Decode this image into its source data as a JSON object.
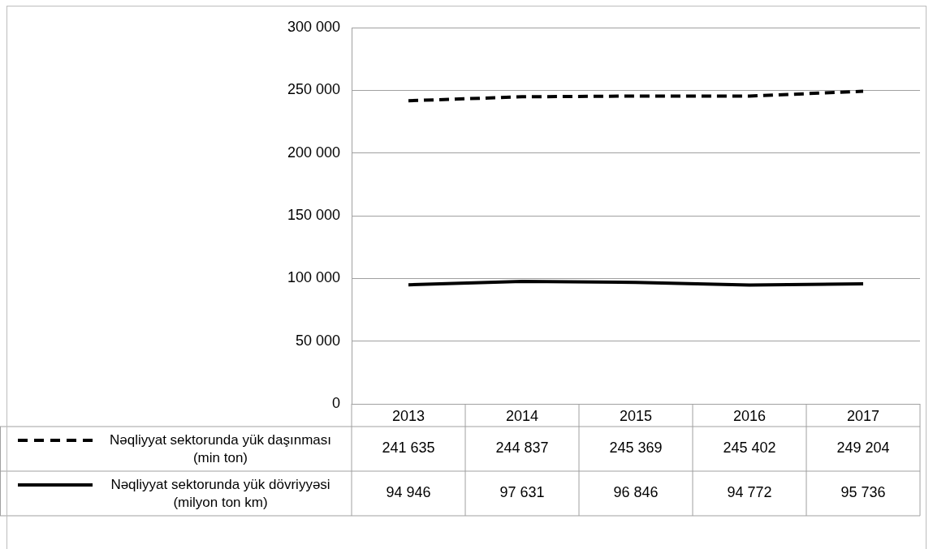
{
  "chart_data": {
    "type": "line",
    "categories": [
      "2013",
      "2014",
      "2015",
      "2016",
      "2017"
    ],
    "ylim": [
      0,
      300000
    ],
    "yticks": [
      {
        "value": 0,
        "label": "0"
      },
      {
        "value": 50000,
        "label": "50 000"
      },
      {
        "value": 100000,
        "label": "100 000"
      },
      {
        "value": 150000,
        "label": "150 000"
      },
      {
        "value": 200000,
        "label": "200 000"
      },
      {
        "value": 250000,
        "label": "250 000"
      },
      {
        "value": 300000,
        "label": "300 000"
      }
    ],
    "grid": "y",
    "legend": "bottom",
    "marker": "none",
    "series": [
      {
        "name": "Nəqliyyat sektorunda yük daşınması (min ton)",
        "color": "#000000",
        "line_style": "dashed",
        "values": [
          241635,
          244837,
          245369,
          245402,
          249204
        ],
        "value_labels": [
          "241 635",
          "244 837",
          "245 369",
          "245 402",
          "249 204"
        ]
      },
      {
        "name": "Nəqliyyat sektorunda yük dövriyyəsi (milyon ton km)",
        "color": "#000000",
        "line_style": "solid",
        "values": [
          94946,
          97631,
          96846,
          94772,
          95736
        ],
        "value_labels": [
          "94 946",
          "97 631",
          "96 846",
          "94 772",
          "95 736"
        ]
      }
    ]
  }
}
